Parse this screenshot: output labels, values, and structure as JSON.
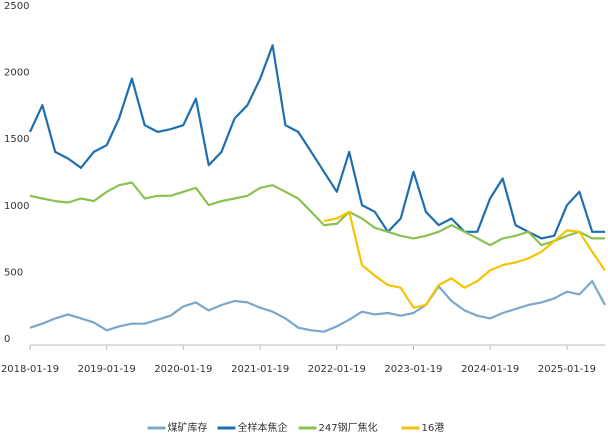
{
  "chart_data": {
    "type": "line",
    "x": [
      "2018-01-19",
      "2018-03-19",
      "2018-05-19",
      "2018-07-19",
      "2018-09-19",
      "2018-11-19",
      "2019-01-19",
      "2019-03-19",
      "2019-05-19",
      "2019-07-19",
      "2019-09-19",
      "2019-11-19",
      "2020-01-19",
      "2020-03-19",
      "2020-05-19",
      "2020-07-19",
      "2020-09-19",
      "2020-11-19",
      "2021-01-19",
      "2021-03-19",
      "2021-05-19",
      "2021-07-19",
      "2021-09-19",
      "2021-11-19",
      "2022-01-19",
      "2022-03-19",
      "2022-05-19",
      "2022-07-19",
      "2022-09-19",
      "2022-11-19",
      "2023-01-19",
      "2023-03-19",
      "2023-05-19",
      "2023-07-19",
      "2023-09-19",
      "2023-11-19",
      "2024-01-19",
      "2024-03-19",
      "2024-05-19",
      "2024-07-19",
      "2024-09-19",
      "2024-11-19",
      "2025-01-19",
      "2025-03-19",
      "2025-05-19",
      "2025-07-19"
    ],
    "series": [
      {
        "name": "煤矿库存",
        "color": "#7ba7cc",
        "values": [
          130,
          160,
          200,
          230,
          200,
          170,
          110,
          140,
          160,
          160,
          190,
          220,
          290,
          320,
          260,
          300,
          330,
          320,
          280,
          250,
          200,
          130,
          110,
          100,
          140,
          190,
          250,
          230,
          240,
          220,
          240,
          300,
          440,
          330,
          260,
          220,
          200,
          240,
          270,
          300,
          320,
          350,
          400,
          380,
          480,
          300
        ]
      },
      {
        "name": "全样本焦企",
        "color": "#1f6fb0",
        "values": [
          1600,
          1800,
          1450,
          1400,
          1330,
          1450,
          1500,
          1700,
          2000,
          1650,
          1600,
          1620,
          1650,
          1850,
          1350,
          1450,
          1700,
          1800,
          2000,
          2250,
          1650,
          1600,
          1450,
          1300,
          1150,
          1450,
          1050,
          1000,
          850,
          950,
          1300,
          1000,
          900,
          950,
          850,
          850,
          1100,
          1250,
          900,
          850,
          800,
          820,
          1050,
          1150,
          850,
          850
        ]
      },
      {
        "name": "247钢厂焦化",
        "color": "#8cc152",
        "values": [
          1120,
          1100,
          1080,
          1070,
          1100,
          1080,
          1150,
          1200,
          1220,
          1100,
          1120,
          1120,
          1150,
          1180,
          1050,
          1080,
          1100,
          1120,
          1180,
          1200,
          1150,
          1100,
          1000,
          900,
          910,
          1000,
          950,
          880,
          850,
          820,
          800,
          820,
          850,
          900,
          850,
          800,
          750,
          800,
          820,
          850,
          750,
          780,
          820,
          850,
          800,
          800
        ]
      },
      {
        "name": "16港",
        "color": "#f5c400",
        "values": [
          null,
          null,
          null,
          null,
          null,
          null,
          null,
          null,
          null,
          null,
          null,
          null,
          null,
          null,
          null,
          null,
          null,
          null,
          null,
          null,
          null,
          null,
          null,
          930,
          950,
          1000,
          600,
          520,
          450,
          430,
          280,
          300,
          450,
          500,
          430,
          480,
          560,
          600,
          620,
          650,
          700,
          780,
          860,
          850,
          700,
          560
        ]
      }
    ],
    "xlim": [
      "2018-01-19",
      "2025-07-19"
    ],
    "xticks": [
      "2018-01-19",
      "2019-01-19",
      "2020-01-19",
      "2021-01-19",
      "2022-01-19",
      "2023-01-19",
      "2024-01-19",
      "2025-01-19"
    ],
    "ylim": [
      0,
      2500
    ],
    "yticks": [
      0,
      500,
      1000,
      1500,
      2000,
      2500
    ]
  }
}
